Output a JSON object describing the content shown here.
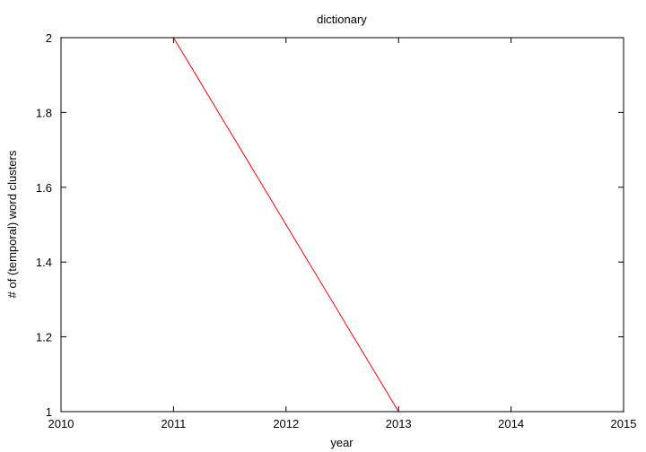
{
  "chart_data": {
    "type": "line",
    "title": "dictionary",
    "xlabel": "year",
    "ylabel": "# of (temporal) word clusters",
    "xlim": [
      2010,
      2015
    ],
    "ylim": [
      1,
      2
    ],
    "x_ticks": [
      2010,
      2011,
      2012,
      2013,
      2014,
      2015
    ],
    "y_ticks": [
      1,
      1.2,
      1.4,
      1.6,
      1.8,
      2
    ],
    "y_tick_labels": [
      "1",
      "1.2",
      "1.4",
      "1.6",
      "1.8",
      "2"
    ],
    "grid": false,
    "series": [
      {
        "x": [
          2010,
          2011,
          2012,
          2013,
          2014,
          2015
        ],
        "values": [
          2,
          2,
          1.5,
          1,
          1,
          1
        ],
        "color": "#ff0000"
      }
    ]
  }
}
